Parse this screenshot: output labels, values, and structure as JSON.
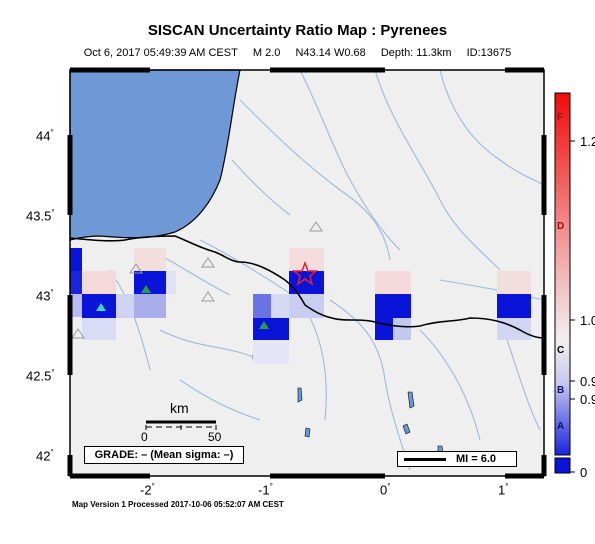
{
  "header": {
    "title": "SISCAN Uncertainty Ratio Map : Pyrenees",
    "date": "Oct  6, 2017 05:49:39 AM CEST",
    "magnitude": "M 2.0",
    "location": "N43.14 W0.68",
    "depth": "Depth: 11.3km",
    "event_id": "ID:13675"
  },
  "axes": {
    "latitude_labels": [
      "44",
      "43.5",
      "43",
      "42.5",
      "42"
    ],
    "longitude_labels": [
      "-2",
      "-1",
      "0",
      "1"
    ]
  },
  "scale_bar": {
    "unit": "km",
    "ticks": [
      "0",
      "50"
    ]
  },
  "grade_box": "GRADE: – (Mean sigma: –)",
  "mi_box": "MI = 6.0",
  "colorbar": {
    "grade_labels": [
      "F",
      "D",
      "C",
      "B",
      "A"
    ],
    "values": [
      "1.2",
      "1.0",
      "0.9",
      "0.9",
      "0"
    ]
  },
  "footer": "Map Version 1 Processed 2017-10-06 05:52:07 AM CEST",
  "colors": {
    "sea": "#6f98d6",
    "land": "#efefef",
    "high": "#0a14d8",
    "epicenter": "#e8202a",
    "station": "#2f9a4a",
    "rivers": "#9fb9d8"
  }
}
